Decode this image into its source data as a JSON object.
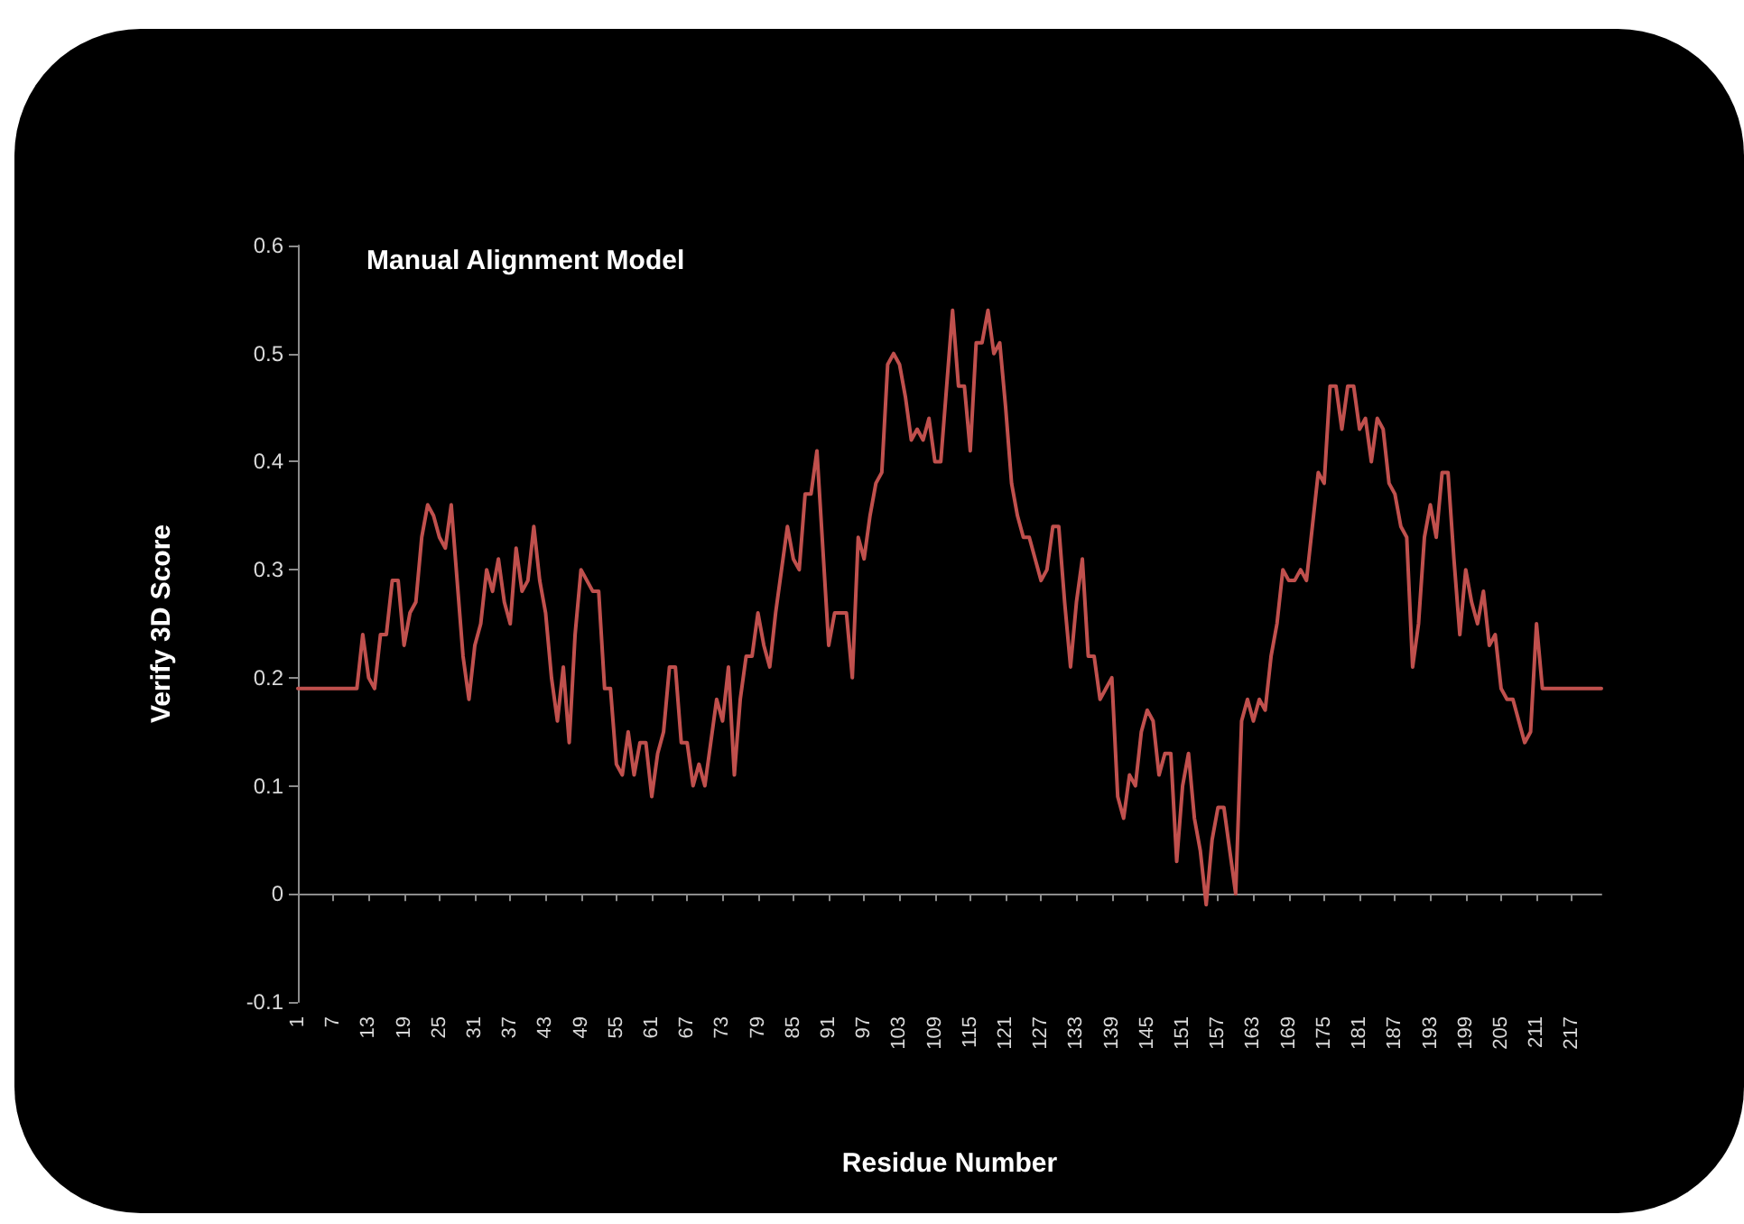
{
  "chart_data": {
    "type": "line",
    "title": "Manual Alignment Model",
    "xlabel": "Residue Number",
    "ylabel": "Verify 3D Score",
    "xlim": [
      1,
      222
    ],
    "xticks": [
      1,
      7,
      13,
      19,
      25,
      31,
      37,
      43,
      49,
      55,
      61,
      67,
      73,
      79,
      85,
      91,
      97,
      103,
      109,
      115,
      121,
      127,
      133,
      139,
      145,
      151,
      157,
      163,
      169,
      175,
      181,
      187,
      193,
      199,
      205,
      211,
      217
    ],
    "ylim": [
      -0.1,
      0.6
    ],
    "yticks": [
      -0.1,
      0,
      0.1,
      0.2,
      0.3,
      0.4,
      0.5,
      0.6
    ],
    "marker": "none",
    "line_style": "solid",
    "series": [
      {
        "color": "#c0504d",
        "x": [
          1,
          11,
          12,
          13,
          14,
          15,
          16,
          17,
          18,
          19,
          20,
          21,
          22,
          23,
          24,
          25,
          26,
          27,
          28,
          29,
          30,
          31,
          32,
          33,
          34,
          35,
          36,
          37,
          38,
          39,
          40,
          41,
          42,
          43,
          44,
          45,
          46,
          47,
          48,
          49,
          50,
          51,
          52,
          53,
          54,
          55,
          56,
          57,
          58,
          59,
          60,
          61,
          62,
          63,
          64,
          65,
          66,
          67,
          68,
          69,
          70,
          71,
          72,
          73,
          74,
          75,
          76,
          77,
          78,
          79,
          80,
          81,
          82,
          83,
          84,
          85,
          86,
          87,
          88,
          89,
          91,
          92,
          93,
          94,
          95,
          96,
          97,
          98,
          99,
          100,
          101,
          102,
          103,
          104,
          105,
          106,
          107,
          108,
          109,
          110,
          111,
          112,
          113,
          114,
          115,
          116,
          117,
          118,
          119,
          120,
          121,
          122,
          123,
          124,
          125,
          126,
          127,
          128,
          129,
          130,
          131,
          132,
          133,
          134,
          135,
          136,
          137,
          138,
          139,
          140,
          141,
          142,
          143,
          144,
          145,
          146,
          147,
          148,
          149,
          150,
          151,
          152,
          153,
          154,
          155,
          156,
          157,
          158,
          159,
          160,
          161,
          162,
          163,
          164,
          165,
          166,
          167,
          168,
          169,
          170,
          171,
          172,
          173,
          174,
          175,
          176,
          177,
          178,
          179,
          180,
          181,
          182,
          183,
          184,
          185,
          186,
          187,
          188,
          189,
          190,
          191,
          192,
          193,
          194,
          195,
          196,
          197,
          198,
          199,
          200,
          201,
          202,
          203,
          204,
          205,
          206,
          207,
          208,
          209,
          210,
          211,
          212,
          222
        ],
        "values": [
          0.19,
          0.19,
          0.24,
          0.2,
          0.19,
          0.24,
          0.24,
          0.29,
          0.29,
          0.23,
          0.26,
          0.27,
          0.33,
          0.36,
          0.35,
          0.33,
          0.32,
          0.36,
          0.29,
          0.22,
          0.18,
          0.23,
          0.25,
          0.3,
          0.28,
          0.31,
          0.27,
          0.25,
          0.32,
          0.28,
          0.29,
          0.34,
          0.29,
          0.26,
          0.2,
          0.16,
          0.21,
          0.14,
          0.24,
          0.3,
          0.29,
          0.28,
          0.28,
          0.19,
          0.19,
          0.12,
          0.11,
          0.15,
          0.11,
          0.14,
          0.14,
          0.09,
          0.13,
          0.15,
          0.21,
          0.21,
          0.14,
          0.14,
          0.1,
          0.12,
          0.1,
          0.14,
          0.18,
          0.16,
          0.21,
          0.11,
          0.18,
          0.22,
          0.22,
          0.26,
          0.23,
          0.21,
          0.26,
          0.3,
          0.34,
          0.31,
          0.3,
          0.37,
          0.37,
          0.41,
          0.23,
          0.26,
          0.26,
          0.26,
          0.2,
          0.33,
          0.31,
          0.35,
          0.38,
          0.39,
          0.49,
          0.5,
          0.49,
          0.46,
          0.42,
          0.43,
          0.42,
          0.44,
          0.4,
          0.4,
          0.47,
          0.54,
          0.47,
          0.47,
          0.41,
          0.51,
          0.51,
          0.54,
          0.5,
          0.51,
          0.45,
          0.38,
          0.35,
          0.33,
          0.33,
          0.31,
          0.29,
          0.3,
          0.34,
          0.34,
          0.27,
          0.21,
          0.27,
          0.31,
          0.22,
          0.22,
          0.18,
          0.19,
          0.2,
          0.09,
          0.07,
          0.11,
          0.1,
          0.15,
          0.17,
          0.16,
          0.11,
          0.13,
          0.13,
          0.03,
          0.1,
          0.13,
          0.07,
          0.04,
          -0.01,
          0.05,
          0.08,
          0.08,
          0.04,
          0.0,
          0.16,
          0.18,
          0.16,
          0.18,
          0.17,
          0.22,
          0.25,
          0.3,
          0.29,
          0.29,
          0.3,
          0.29,
          0.34,
          0.39,
          0.38,
          0.47,
          0.47,
          0.43,
          0.47,
          0.47,
          0.43,
          0.44,
          0.4,
          0.44,
          0.43,
          0.38,
          0.37,
          0.34,
          0.33,
          0.21,
          0.25,
          0.33,
          0.36,
          0.33,
          0.39,
          0.39,
          0.31,
          0.24,
          0.3,
          0.27,
          0.25,
          0.28,
          0.23,
          0.24,
          0.19,
          0.18,
          0.18,
          0.16,
          0.14,
          0.15,
          0.25,
          0.19,
          0.19
        ]
      }
    ]
  }
}
